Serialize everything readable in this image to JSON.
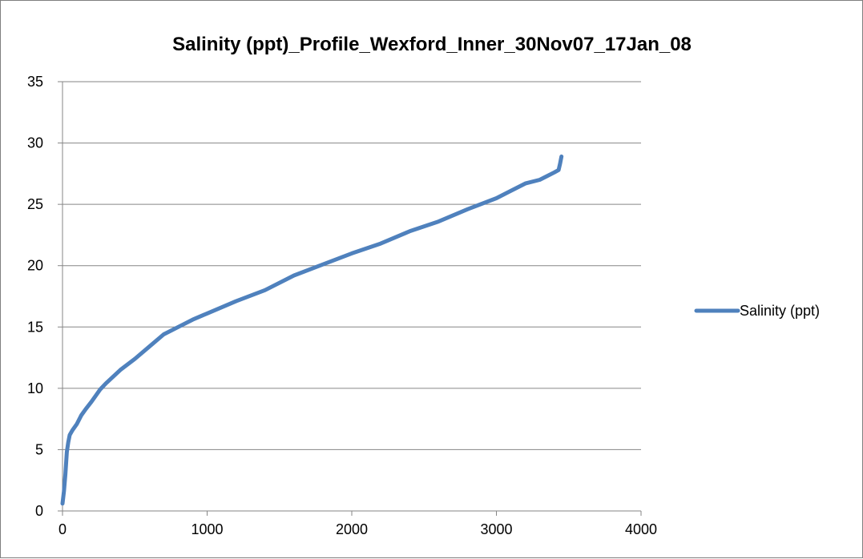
{
  "chart_data": {
    "type": "line",
    "title": "Salinity (ppt)_Profile_Wexford_Inner_30Nov07_17Jan_08",
    "xlabel": "",
    "ylabel": "",
    "xlim": [
      0,
      4000
    ],
    "ylim": [
      0,
      35
    ],
    "x_ticks": [
      "0",
      "1000",
      "2000",
      "3000",
      "4000"
    ],
    "y_ticks": [
      "0",
      "5",
      "10",
      "15",
      "20",
      "25",
      "30",
      "35"
    ],
    "grid": "horizontal",
    "legend_position": "right",
    "series": [
      {
        "name": "Salinity (ppt)",
        "color": "#4f81bd",
        "x": [
          0,
          10,
          20,
          30,
          40,
          50,
          70,
          100,
          130,
          160,
          200,
          260,
          300,
          400,
          500,
          600,
          700,
          800,
          900,
          1000,
          1200,
          1400,
          1600,
          1800,
          2000,
          2200,
          2400,
          2600,
          2800,
          3000,
          3200,
          3300,
          3350,
          3400,
          3430,
          3440,
          3450
        ],
        "values": [
          0.6,
          1.6,
          3.0,
          4.8,
          5.6,
          6.2,
          6.6,
          7.1,
          7.8,
          8.3,
          8.9,
          9.9,
          10.4,
          11.5,
          12.4,
          13.4,
          14.4,
          15.0,
          15.6,
          16.1,
          17.1,
          18.0,
          19.2,
          20.1,
          21.0,
          21.8,
          22.8,
          23.6,
          24.6,
          25.5,
          26.7,
          27.0,
          27.3,
          27.6,
          27.8,
          28.3,
          28.9
        ]
      }
    ]
  }
}
